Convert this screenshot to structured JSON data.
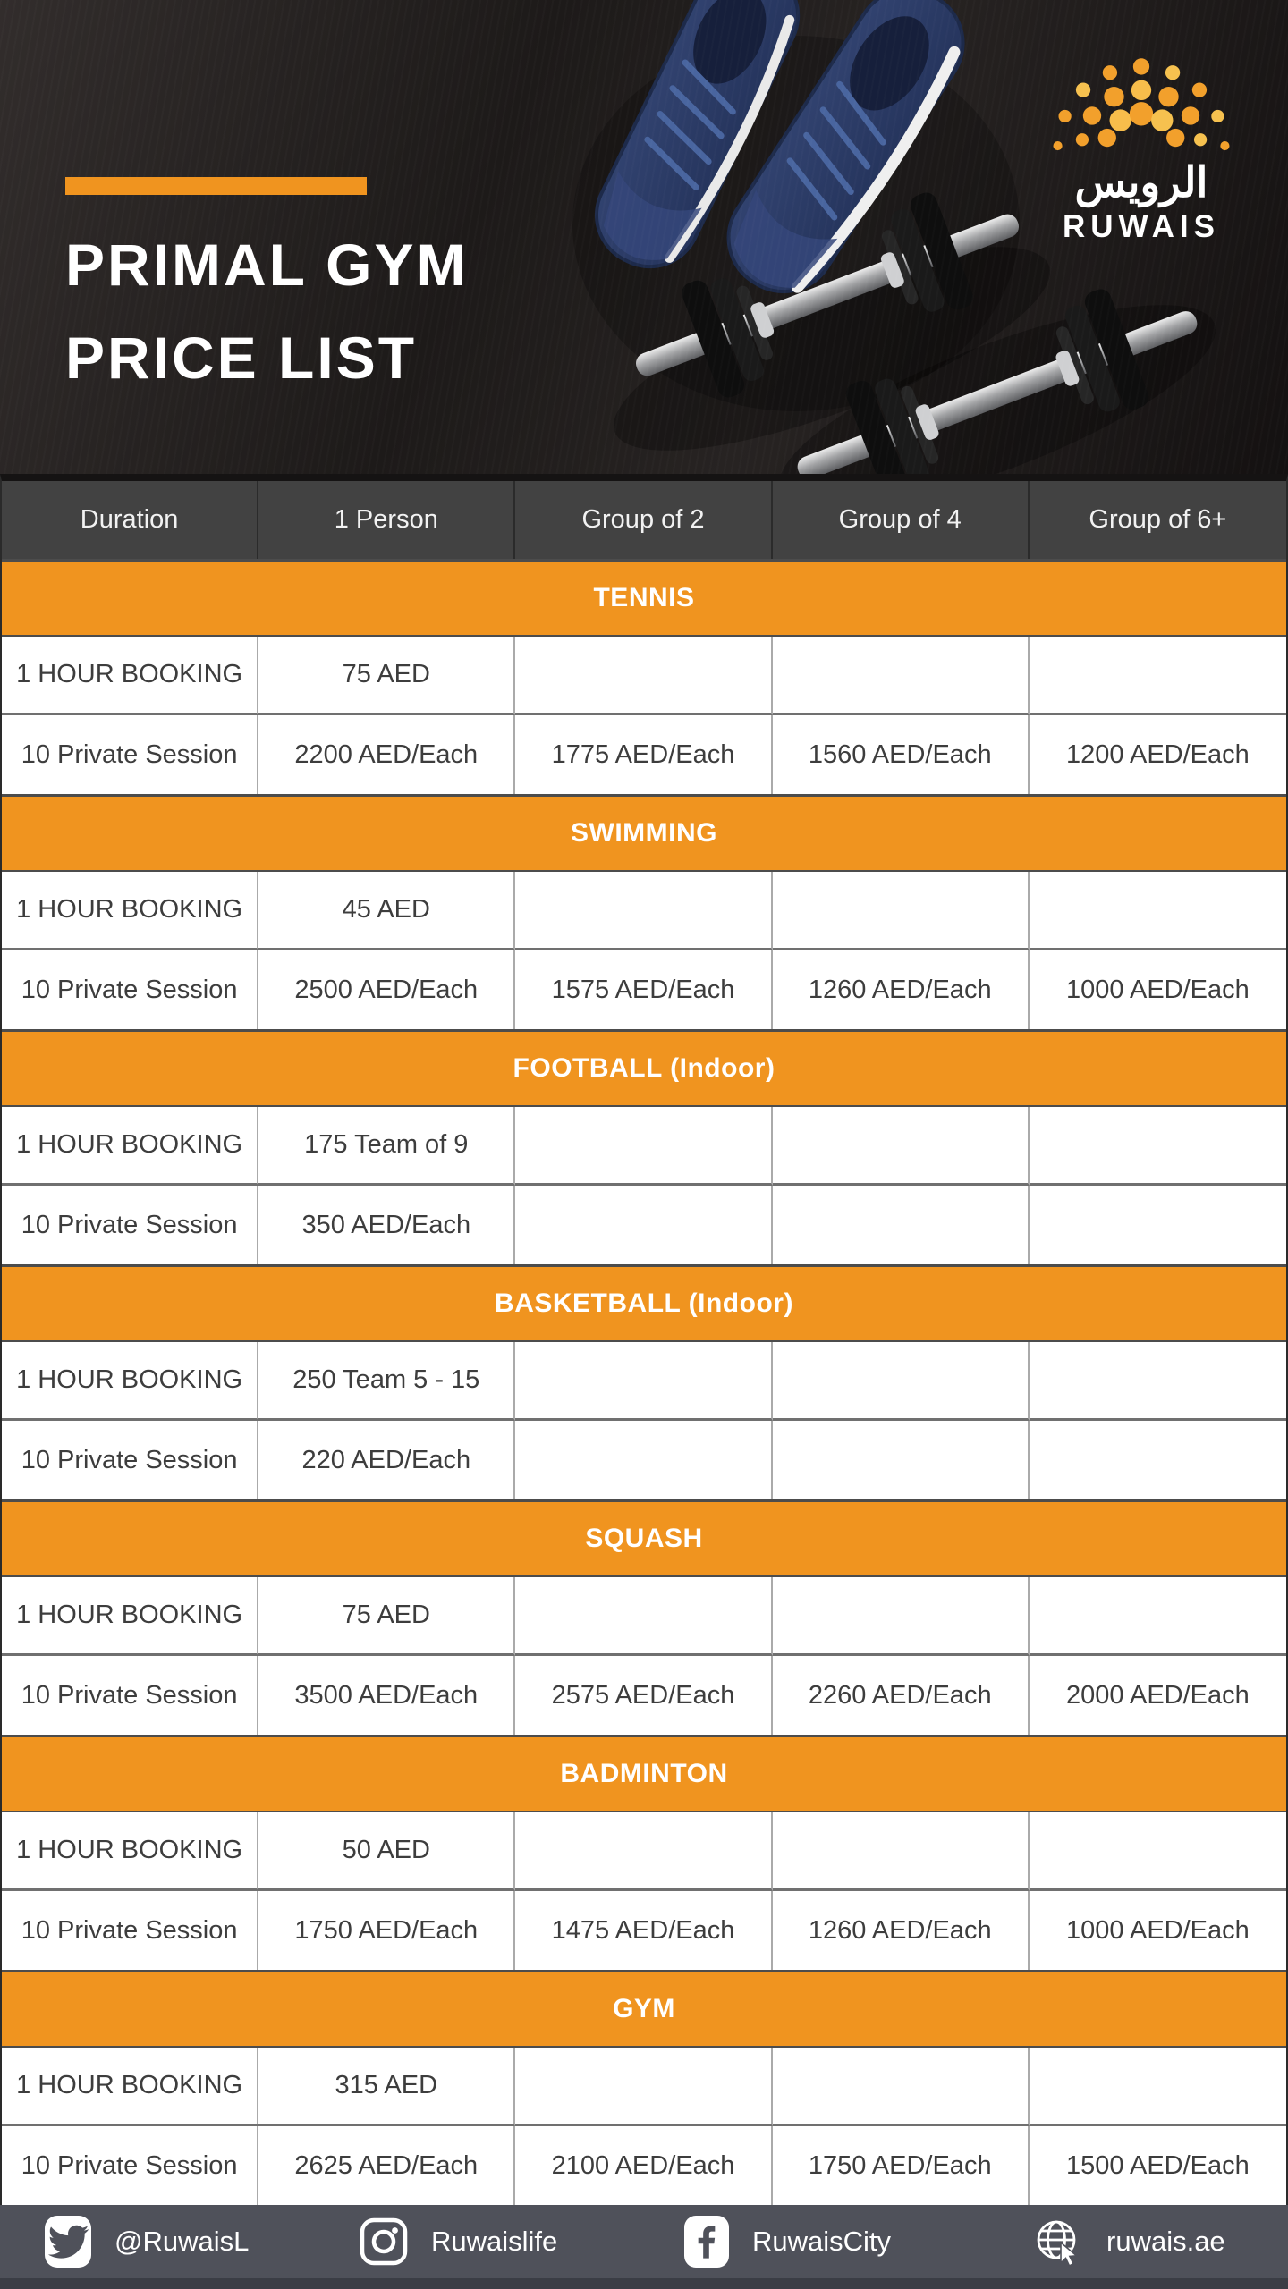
{
  "header": {
    "title_line1": "PRIMAL GYM",
    "title_line2": "PRICE LIST",
    "logo": {
      "arabic": "الرويس",
      "latin": "RUWAIS"
    }
  },
  "table": {
    "columns": [
      "Duration",
      "1 Person",
      "Group of 2",
      "Group of 4",
      "Group of 6+"
    ],
    "sections": [
      {
        "name": "TENNIS",
        "rows": [
          [
            "1 HOUR BOOKING",
            "75 AED",
            "",
            "",
            ""
          ],
          [
            "10 Private Session",
            "2200 AED/Each",
            "1775 AED/Each",
            "1560 AED/Each",
            "1200 AED/Each"
          ]
        ]
      },
      {
        "name": "SWIMMING",
        "rows": [
          [
            "1 HOUR BOOKING",
            "45 AED",
            "",
            "",
            ""
          ],
          [
            "10 Private Session",
            "2500 AED/Each",
            "1575 AED/Each",
            "1260 AED/Each",
            "1000 AED/Each"
          ]
        ]
      },
      {
        "name": "FOOTBALL (Indoor)",
        "rows": [
          [
            "1 HOUR BOOKING",
            "175 Team of 9",
            "",
            "",
            ""
          ],
          [
            "10 Private Session",
            "350  AED/Each",
            "",
            "",
            ""
          ]
        ]
      },
      {
        "name": "BASKETBALL (Indoor)",
        "rows": [
          [
            "1 HOUR BOOKING",
            "250 Team 5 - 15",
            "",
            "",
            ""
          ],
          [
            "10 Private Session",
            "220 AED/Each",
            "",
            "",
            ""
          ]
        ]
      },
      {
        "name": "SQUASH",
        "rows": [
          [
            "1 HOUR BOOKING",
            "75 AED",
            "",
            "",
            ""
          ],
          [
            "10 Private Session",
            "3500 AED/Each",
            "2575 AED/Each",
            "2260 AED/Each",
            "2000 AED/Each"
          ]
        ]
      },
      {
        "name": "BADMINTON",
        "rows": [
          [
            "1 HOUR BOOKING",
            "50 AED",
            "",
            "",
            ""
          ],
          [
            "10 Private Session",
            "1750 AED/Each",
            "1475 AED/Each",
            "1260 AED/Each",
            "1000 AED/Each"
          ]
        ]
      },
      {
        "name": "GYM",
        "rows": [
          [
            "1 HOUR BOOKING",
            "315 AED",
            "",
            "",
            ""
          ],
          [
            "10 Private Session",
            "2625 AED/Each",
            "2100 AED/Each",
            "1750 AED/Each",
            "1500 AED/Each"
          ]
        ]
      }
    ]
  },
  "footer": {
    "items": [
      {
        "icon": "twitter-icon",
        "label": "@RuwaisL"
      },
      {
        "icon": "instagram-icon",
        "label": "Ruwaislife"
      },
      {
        "icon": "facebook-icon",
        "label": "RuwaisCity"
      },
      {
        "icon": "globe-icon",
        "label": "ruwais.ae"
      }
    ]
  },
  "colors": {
    "brand_orange": "#F0941F",
    "header_row_bg": "#424242",
    "table_text": "#3D3D3D",
    "footer_bg": "#4F515A",
    "logo_dot_orange": "#F2A02C",
    "logo_dot_gold": "#F7BD4B",
    "sneaker_navy": "#2B3A63"
  }
}
